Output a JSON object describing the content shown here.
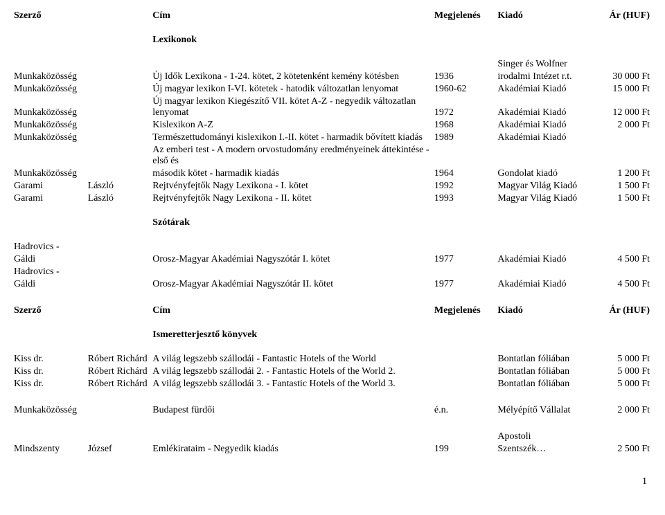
{
  "headers": {
    "author": "Szerző",
    "title": "Cím",
    "year": "Megjelenés",
    "publisher": "Kiadó",
    "price": "Ár (HUF)"
  },
  "sections": {
    "lexikonok": "Lexikonok",
    "szotarak": "Szótárak",
    "ismeret": "Ismeretterjesztő könyvek"
  },
  "lex": [
    {
      "a1": "Munkaközösség",
      "a2": "",
      "t": "Új Idők Lexikona - 1-24. kötet, 2 kötetenként kemény kötésben",
      "y": "1936",
      "pub1": "Singer és Wolfner",
      "pub2": "irodalmi Intézet r.t.",
      "pr": "30 000 Ft"
    },
    {
      "a1": "Munkaközösség",
      "a2": "",
      "t": "Új magyar lexikon I-VI. kötetek  - hatodik változatlan lenyomat",
      "y": "1960-62",
      "pub": "Akadémiai Kiadó",
      "pr": "15 000 Ft"
    },
    {
      "a1": "Munkaközösség",
      "a2": "",
      "t": "Új magyar lexikon Kiegészítő VII. kötet A-Z - negyedik változatlan lenyomat",
      "y": "1972",
      "pub": "Akadémiai Kiadó",
      "pr": "12 000 Ft"
    },
    {
      "a1": "Munkaközösség",
      "a2": "",
      "t": "Kislexikon A-Z",
      "y": "1968",
      "pub": "Akadémiai Kiadó",
      "pr": "2 000 Ft"
    },
    {
      "a1": "Munkaközösség",
      "a2": "",
      "t": "Természettudományi kislexikon I.-II. kötet - harmadik bővített kiadás",
      "y": "1989",
      "pub": "Akadémiai Kiadó",
      "pr": ""
    },
    {
      "a1": "Munkaközösség",
      "a2": "",
      "t1": "Az emberi test - A modern orvostudomány eredményeinek áttekintése - első és",
      "t2": "második kötet - harmadik kiadás",
      "y": "1964",
      "pub": "Gondolat kiadó",
      "pr": "1 200 Ft"
    },
    {
      "a1": "Garami",
      "a2": "László",
      "t": "Rejtvényfejtők Nagy Lexikona  -  I. kötet",
      "y": "1992",
      "pub": "Magyar Világ Kiadó",
      "pr": "1 500 Ft"
    },
    {
      "a1": "Garami",
      "a2": "László",
      "t": "Rejtvényfejtők Nagy Lexikona  -  II. kötet",
      "y": "1993",
      "pub": "Magyar Világ Kiadó",
      "pr": "1 500 Ft"
    }
  ],
  "szo": [
    {
      "a1_l1": "Hadrovics -",
      "a1_l2": "Gáldi",
      "t": "Orosz-Magyar Akadémiai Nagyszótár I. kötet",
      "y": "1977",
      "pub": "Akadémiai Kiadó",
      "pr": "4 500 Ft"
    },
    {
      "a1_l1": "Hadrovics -",
      "a1_l2": "Gáldi",
      "t": "Orosz-Magyar Akadémiai Nagyszótár II. kötet",
      "y": "1977",
      "pub": "Akadémiai Kiadó",
      "pr": "4 500 Ft"
    }
  ],
  "ism": [
    {
      "a1": "Kiss dr.",
      "a2": "Róbert Richárd",
      "t": "A világ legszebb szállodái - Fantastic Hotels of the World",
      "y": "",
      "pub": "Bontatlan fóliában",
      "pr": "5 000 Ft"
    },
    {
      "a1": "Kiss dr.",
      "a2": "Róbert Richárd",
      "t": "A világ legszebb szállodái 2. - Fantastic Hotels of the World 2.",
      "y": "",
      "pub": "Bontatlan fóliában",
      "pr": "5 000 Ft"
    },
    {
      "a1": "Kiss dr.",
      "a2": "Róbert Richárd",
      "t": "A világ legszebb szállodái 3. - Fantastic Hotels of the World 3.",
      "y": "",
      "pub": "Bontatlan fóliában",
      "pr": "5 000 Ft"
    }
  ],
  "budapest": {
    "a1": "Munkaközösség",
    "t": "Budapest fürdői",
    "y": "é.n.",
    "pub": "Mélyépítő Vállalat",
    "pr": "2 000 Ft"
  },
  "mindszenty": {
    "a1": "Mindszenty",
    "a2": "József",
    "t": "Emlékirataim  -  Negyedik kiadás",
    "y": "199",
    "pub1": "Apostoli",
    "pub2": "Szentszék…",
    "pr": "2 500 Ft"
  },
  "page_number": "1"
}
